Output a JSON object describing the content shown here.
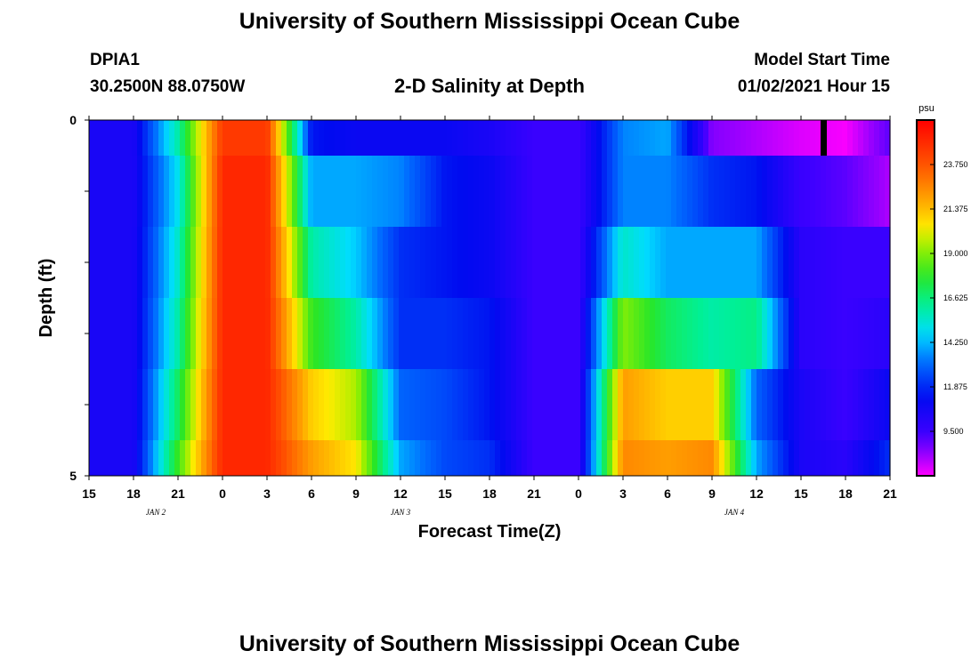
{
  "header": {
    "title": "University of Southern Mississippi Ocean Cube",
    "station": "DPIA1",
    "coords": "30.2500N 88.0750W",
    "subtitle": "2-D Salinity at Depth",
    "start_label": "Model Start Time",
    "start_time": "01/02/2021 Hour 15"
  },
  "footer": {
    "title": "University of Southern Mississippi Ocean Cube"
  },
  "chart_data": {
    "type": "heatmap",
    "title": "2-D Salinity at Depth",
    "xlabel": "Forecast Time(Z)",
    "ylabel": "Depth (ft)",
    "x_tick_labels": [
      "15",
      "18",
      "21",
      "0",
      "3",
      "6",
      "9",
      "12",
      "15",
      "18",
      "21",
      "0",
      "3",
      "6",
      "9",
      "12",
      "15",
      "18",
      "21"
    ],
    "y_tick_labels": [
      "0",
      "5"
    ],
    "ylim": [
      0,
      5
    ],
    "day_labels": [
      {
        "text": "JAN 2",
        "at_tick": 1.5
      },
      {
        "text": "JAN 3",
        "at_tick": 7
      },
      {
        "text": "JAN 4",
        "at_tick": 14.5
      }
    ],
    "current_time_marker": {
      "hours_from_start": 49.5
    },
    "colorbar": {
      "unit": "psu",
      "vmin": 7.125,
      "vmax": 26.125,
      "ticks": [
        "23.750",
        "21.375",
        "19.000",
        "16.625",
        "14.250",
        "11.875",
        "9.500"
      ],
      "tick_values": [
        23.75,
        21.375,
        19.0,
        16.625,
        14.25,
        11.875,
        9.5
      ]
    },
    "x_hours": [
      0,
      3,
      6,
      9,
      12,
      15,
      18,
      21,
      24,
      27,
      30,
      33,
      36,
      39,
      42,
      45,
      48,
      51,
      54
    ],
    "depth_rows": [
      {
        "top": 0.0,
        "bottom": 0.5,
        "values": [
          10.5,
          10.5,
          16,
          24.5,
          24.5,
          11.5,
          11,
          11,
          11,
          10.5,
          9.5,
          9.5,
          13.5,
          14,
          8.5,
          8,
          7.5,
          7.2,
          9
        ]
      },
      {
        "top": 0.5,
        "bottom": 1.5,
        "values": [
          10.5,
          10.5,
          15,
          25,
          25,
          14,
          14,
          13.5,
          11.5,
          11,
          9.5,
          9.5,
          13.5,
          13.5,
          12,
          11.5,
          9.5,
          9,
          8
        ]
      },
      {
        "top": 1.5,
        "bottom": 2.5,
        "values": [
          10.5,
          10.5,
          15.5,
          25,
          25,
          16,
          14.5,
          12,
          11.5,
          11,
          9.5,
          9.5,
          15.5,
          14,
          14,
          14,
          10,
          9.5,
          9.5
        ]
      },
      {
        "top": 2.5,
        "bottom": 3.5,
        "values": [
          10.5,
          10.5,
          16,
          25,
          25,
          18,
          16,
          12,
          12,
          11.5,
          9.5,
          9.5,
          19,
          17,
          16,
          16.5,
          10,
          9.5,
          10
        ]
      },
      {
        "top": 3.5,
        "bottom": 4.5,
        "values": [
          10.5,
          10.5,
          17,
          25,
          25,
          21,
          19.5,
          13,
          12.5,
          11.5,
          9.5,
          9.5,
          22,
          21,
          21,
          13,
          10.5,
          9.5,
          11
        ]
      },
      {
        "top": 4.5,
        "bottom": 5.0,
        "values": [
          10.5,
          10.5,
          18,
          25,
          25,
          22,
          20.5,
          14,
          12.5,
          12,
          9.5,
          9.5,
          22.5,
          22,
          22.5,
          14,
          10.5,
          10,
          12
        ]
      }
    ]
  }
}
